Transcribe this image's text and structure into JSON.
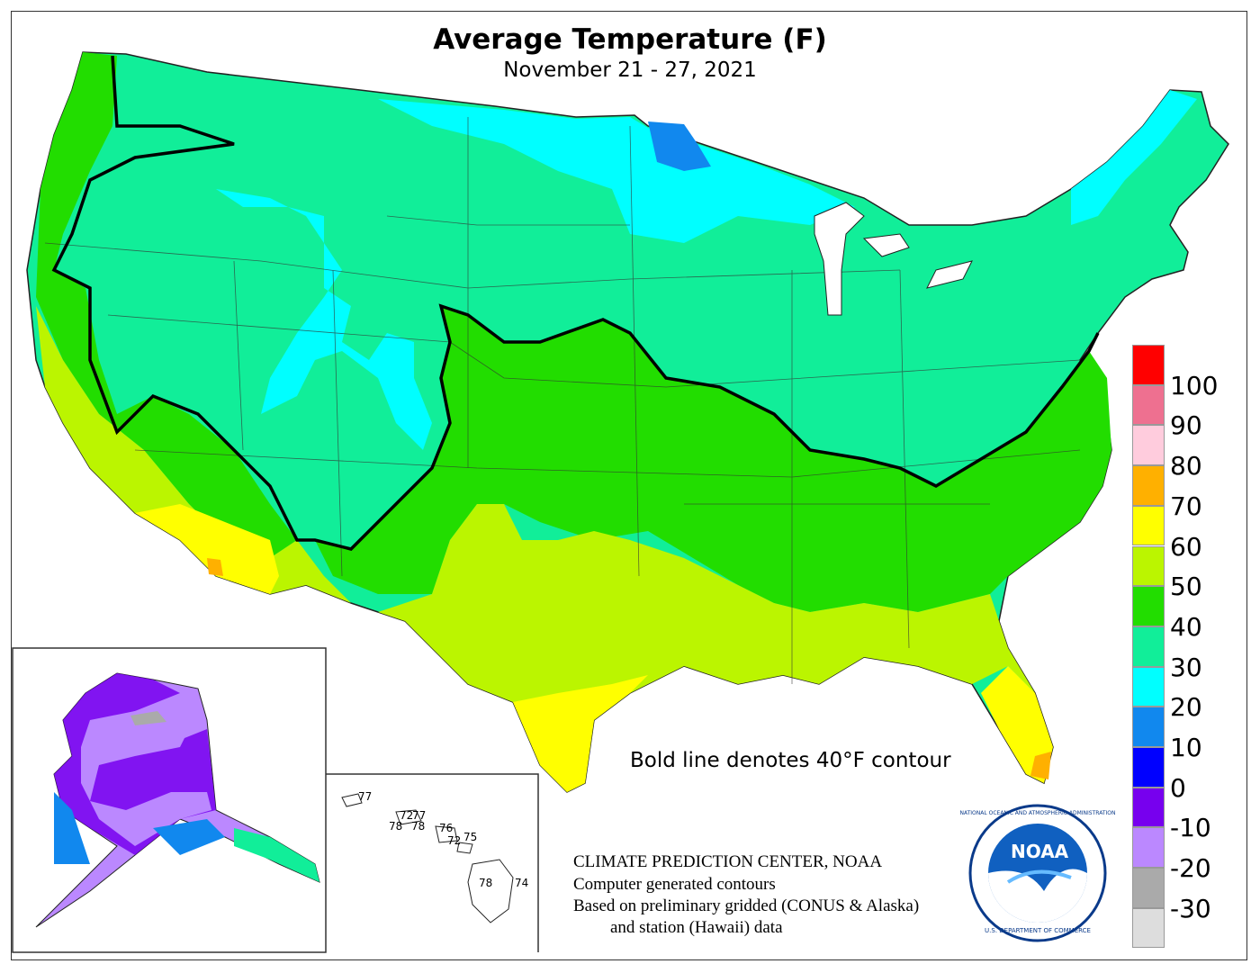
{
  "title": "Average Temperature (F)",
  "subtitle": "November 21 - 27, 2021",
  "note": "Bold line denotes 40°F contour",
  "credits": [
    "CLIMATE PREDICTION CENTER, NOAA",
    "Computer generated contours",
    "Based on preliminary gridded (CONUS & Alaska)",
    "and station (Hawaii) data"
  ],
  "logo": {
    "name": "noaa-logo",
    "text": "NOAA",
    "ring_top": "NATIONAL OCEANIC AND ATMOSPHERIC ADMINISTRATION",
    "ring_bottom": "U.S. DEPARTMENT OF COMMERCE"
  },
  "legend": {
    "unit": "F",
    "bins": [
      {
        "label": "100",
        "color": "#ff0000"
      },
      {
        "label": "90",
        "color": "#ee7090"
      },
      {
        "label": "80",
        "color": "#ffccdd"
      },
      {
        "label": "70",
        "color": "#ffb000"
      },
      {
        "label": "60",
        "color": "#ffff00"
      },
      {
        "label": "50",
        "color": "#bbf500"
      },
      {
        "label": "40",
        "color": "#22dd00"
      },
      {
        "label": "30",
        "color": "#11ee99"
      },
      {
        "label": "20",
        "color": "#00ffff"
      },
      {
        "label": "10",
        "color": "#1188ee"
      },
      {
        "label": "0",
        "color": "#0000ff"
      },
      {
        "label": "-10",
        "color": "#7700ee"
      },
      {
        "label": "-20",
        "color": "#bb88ff"
      },
      {
        "label": "-30",
        "color": "#aaaaaa"
      },
      {
        "label": "",
        "color": "#dddddd"
      }
    ]
  },
  "hawaii_stations": [
    {
      "label": "77"
    },
    {
      "label": "72"
    },
    {
      "label": "77"
    },
    {
      "label": "78"
    },
    {
      "label": "78"
    },
    {
      "label": "76"
    },
    {
      "label": "72"
    },
    {
      "label": "75"
    },
    {
      "label": "78"
    },
    {
      "label": "74"
    }
  ]
}
